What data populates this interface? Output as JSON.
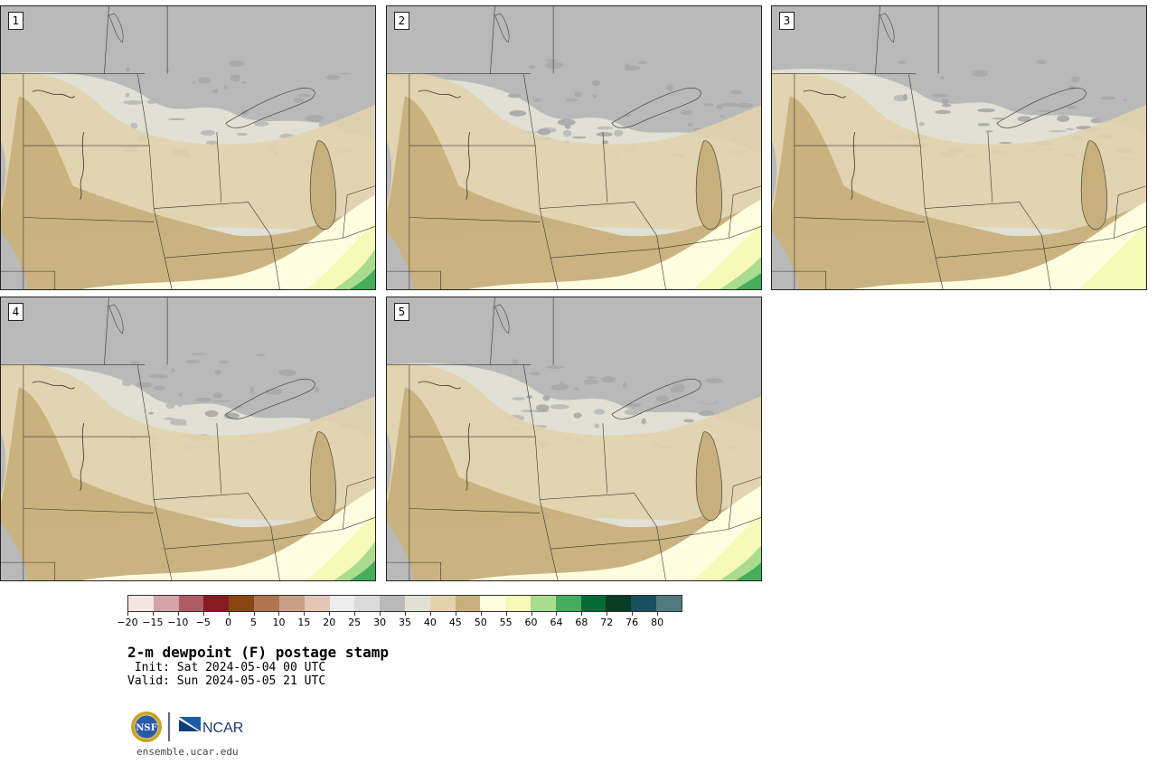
{
  "stamps": [
    {
      "number": "1"
    },
    {
      "number": "2"
    },
    {
      "number": "3"
    },
    {
      "number": "4"
    },
    {
      "number": "5"
    }
  ],
  "colorbar": {
    "colors": [
      "#f3e5e4",
      "#d4a2a7",
      "#ae5c64",
      "#8c1a24",
      "#8b4512",
      "#ad7650",
      "#c9a086",
      "#e2c6b6",
      "#ececec",
      "#dadada",
      "#b9b9b9",
      "#e0e0d4",
      "#e2d3ad",
      "#c8b07c",
      "#fffde0",
      "#f6f9b7",
      "#a9dc8f",
      "#45ad5c",
      "#056b34",
      "#0a3b25",
      "#1b4f60",
      "#507a80"
    ],
    "tick_labels": [
      "−20",
      "−15",
      "−10",
      "−5",
      "0",
      "5",
      "10",
      "15",
      "20",
      "25",
      "30",
      "35",
      "40",
      "45",
      "50",
      "55",
      "60",
      "64",
      "68",
      "72",
      "76",
      "80"
    ]
  },
  "text": {
    "title": "2-m dewpoint (F) postage stamp",
    "init": " Init: Sat 2024-05-04 00 UTC",
    "valid": "Valid: Sun 2024-05-05 21 UTC",
    "site": "ensemble.ucar.edu",
    "nsf_logo": "NSF",
    "ncar_logo": "NCAR"
  }
}
